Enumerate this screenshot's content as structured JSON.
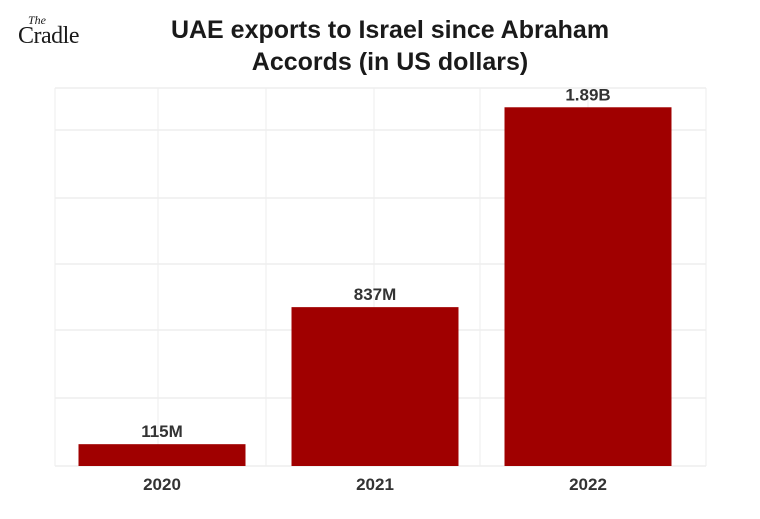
{
  "logo": {
    "line1": "The",
    "line2": "Cradle"
  },
  "chart_data": {
    "type": "bar",
    "title": "UAE exports to Israel since Abraham Accords (in US dollars)",
    "xlabel": "",
    "ylabel": "",
    "categories": [
      "2020",
      "2021",
      "2022"
    ],
    "values": [
      115000000,
      837000000,
      1890000000
    ],
    "data_labels": [
      "115M",
      "837M",
      "1.89B"
    ],
    "ylim": [
      0,
      2000000000
    ],
    "grid": true,
    "bar_color": "#a00000"
  }
}
